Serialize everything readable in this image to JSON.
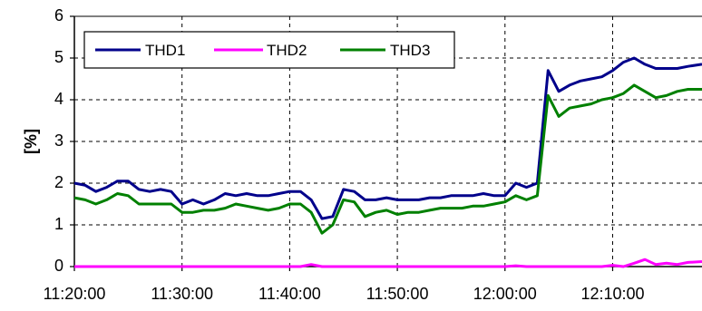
{
  "chart_data": {
    "type": "line",
    "ylabel": "[%]",
    "ylim": [
      0,
      6
    ],
    "y_ticks": [
      "0",
      "1",
      "2",
      "3",
      "4",
      "5",
      "6"
    ],
    "x_ticks": [
      "11:20:00",
      "11:30:00",
      "11:40:00",
      "11:50:00",
      "12:00:00",
      "12:10:00"
    ],
    "x_tick_minutes": [
      0,
      10,
      20,
      30,
      40,
      50
    ],
    "xlim_minutes": [
      0,
      58.3
    ],
    "grid": true,
    "legend_position": "top-left",
    "series": [
      {
        "name": "THD1",
        "color": "#00008B",
        "points": [
          [
            0,
            2.0
          ],
          [
            1,
            1.95
          ],
          [
            2,
            1.8
          ],
          [
            3,
            1.9
          ],
          [
            4,
            2.05
          ],
          [
            5,
            2.05
          ],
          [
            6,
            1.85
          ],
          [
            7,
            1.8
          ],
          [
            8,
            1.85
          ],
          [
            9,
            1.8
          ],
          [
            10,
            1.5
          ],
          [
            11,
            1.6
          ],
          [
            12,
            1.5
          ],
          [
            13,
            1.6
          ],
          [
            14,
            1.75
          ],
          [
            15,
            1.7
          ],
          [
            16,
            1.75
          ],
          [
            17,
            1.7
          ],
          [
            18,
            1.7
          ],
          [
            19,
            1.75
          ],
          [
            20,
            1.8
          ],
          [
            21,
            1.8
          ],
          [
            22,
            1.6
          ],
          [
            23,
            1.15
          ],
          [
            24,
            1.2
          ],
          [
            25,
            1.85
          ],
          [
            26,
            1.8
          ],
          [
            27,
            1.6
          ],
          [
            28,
            1.6
          ],
          [
            29,
            1.65
          ],
          [
            30,
            1.6
          ],
          [
            31,
            1.6
          ],
          [
            32,
            1.6
          ],
          [
            33,
            1.65
          ],
          [
            34,
            1.65
          ],
          [
            35,
            1.7
          ],
          [
            36,
            1.7
          ],
          [
            37,
            1.7
          ],
          [
            38,
            1.75
          ],
          [
            39,
            1.7
          ],
          [
            40,
            1.7
          ],
          [
            41,
            2.0
          ],
          [
            42,
            1.9
          ],
          [
            43,
            2.0
          ],
          [
            44,
            4.7
          ],
          [
            45,
            4.2
          ],
          [
            46,
            4.35
          ],
          [
            47,
            4.45
          ],
          [
            48,
            4.5
          ],
          [
            49,
            4.55
          ],
          [
            50,
            4.7
          ],
          [
            51,
            4.9
          ],
          [
            52,
            5.0
          ],
          [
            53,
            4.85
          ],
          [
            54,
            4.75
          ],
          [
            55,
            4.75
          ],
          [
            56,
            4.75
          ],
          [
            57,
            4.8
          ],
          [
            58.3,
            4.85
          ]
        ]
      },
      {
        "name": "THD2",
        "color": "#FF00FF",
        "points": [
          [
            0,
            0.0
          ],
          [
            21,
            0.0
          ],
          [
            22,
            0.05
          ],
          [
            23,
            0.0
          ],
          [
            40,
            0.0
          ],
          [
            41,
            0.02
          ],
          [
            42,
            0.0
          ],
          [
            49,
            0.0
          ],
          [
            50,
            0.03
          ],
          [
            51,
            0.0
          ],
          [
            52,
            0.08
          ],
          [
            53,
            0.17
          ],
          [
            54,
            0.05
          ],
          [
            55,
            0.08
          ],
          [
            56,
            0.05
          ],
          [
            57,
            0.1
          ],
          [
            58.3,
            0.12
          ]
        ]
      },
      {
        "name": "THD3",
        "color": "#008000",
        "points": [
          [
            0,
            1.65
          ],
          [
            1,
            1.6
          ],
          [
            2,
            1.5
          ],
          [
            3,
            1.6
          ],
          [
            4,
            1.75
          ],
          [
            5,
            1.7
          ],
          [
            6,
            1.5
          ],
          [
            7,
            1.5
          ],
          [
            8,
            1.5
          ],
          [
            9,
            1.5
          ],
          [
            10,
            1.3
          ],
          [
            11,
            1.3
          ],
          [
            12,
            1.35
          ],
          [
            13,
            1.35
          ],
          [
            14,
            1.4
          ],
          [
            15,
            1.5
          ],
          [
            16,
            1.45
          ],
          [
            17,
            1.4
          ],
          [
            18,
            1.35
          ],
          [
            19,
            1.4
          ],
          [
            20,
            1.5
          ],
          [
            21,
            1.5
          ],
          [
            22,
            1.3
          ],
          [
            23,
            0.8
          ],
          [
            24,
            1.0
          ],
          [
            25,
            1.6
          ],
          [
            26,
            1.55
          ],
          [
            27,
            1.2
          ],
          [
            28,
            1.3
          ],
          [
            29,
            1.35
          ],
          [
            30,
            1.25
          ],
          [
            31,
            1.3
          ],
          [
            32,
            1.3
          ],
          [
            33,
            1.35
          ],
          [
            34,
            1.4
          ],
          [
            35,
            1.4
          ],
          [
            36,
            1.4
          ],
          [
            37,
            1.45
          ],
          [
            38,
            1.45
          ],
          [
            39,
            1.5
          ],
          [
            40,
            1.55
          ],
          [
            41,
            1.7
          ],
          [
            42,
            1.6
          ],
          [
            43,
            1.7
          ],
          [
            44,
            4.1
          ],
          [
            45,
            3.6
          ],
          [
            46,
            3.8
          ],
          [
            47,
            3.85
          ],
          [
            48,
            3.9
          ],
          [
            49,
            4.0
          ],
          [
            50,
            4.05
          ],
          [
            51,
            4.15
          ],
          [
            52,
            4.35
          ],
          [
            53,
            4.2
          ],
          [
            54,
            4.05
          ],
          [
            55,
            4.1
          ],
          [
            56,
            4.2
          ],
          [
            57,
            4.25
          ],
          [
            58.3,
            4.25
          ]
        ]
      }
    ]
  }
}
